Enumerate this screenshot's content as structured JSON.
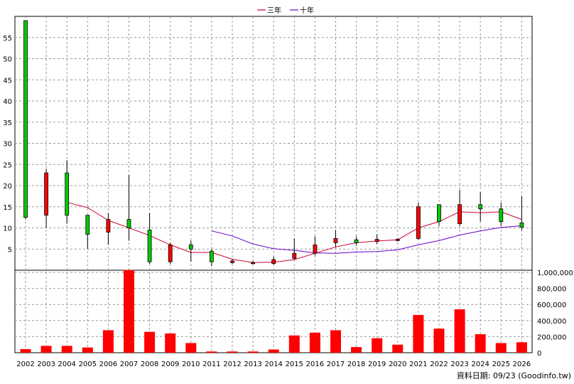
{
  "chart_data": {
    "type": "candlestick",
    "legend_position": "top-center",
    "source_note": "資料日期: 09/23 (Goodinfo.tw)",
    "categories": [
      "2002",
      "2003",
      "2004",
      "2005",
      "2006",
      "2007",
      "2008",
      "2009",
      "2010",
      "2011",
      "2012",
      "2013",
      "2014",
      "2015",
      "2016",
      "2017",
      "2018",
      "2019",
      "2020",
      "2021",
      "2022",
      "2023",
      "2024",
      "2025",
      "2026"
    ],
    "colors": {
      "up": "#00cc00",
      "down": "#ff0000",
      "ma3": "#cc0033",
      "ma10": "#6600cc",
      "grid": "#999999"
    },
    "price_panel": {
      "ylim": [
        0,
        60
      ],
      "yticks": [
        5,
        10,
        15,
        20,
        25,
        30,
        35,
        40,
        45,
        50,
        55
      ],
      "candles": [
        {
          "o": 12.5,
          "h": 59,
          "l": 12,
          "c": 59
        },
        {
          "o": 23,
          "h": 24,
          "l": 10,
          "c": 13
        },
        {
          "o": 13,
          "h": 26,
          "l": 11,
          "c": 23
        },
        {
          "o": 8.5,
          "h": 13,
          "l": 5,
          "c": 13
        },
        {
          "o": 12,
          "h": 13.5,
          "l": 6,
          "c": 9
        },
        {
          "o": 10,
          "h": 22.5,
          "l": 7,
          "c": 12
        },
        {
          "o": 2,
          "h": 13.5,
          "l": 1.5,
          "c": 9.5
        },
        {
          "o": 6,
          "h": 6.5,
          "l": 1.5,
          "c": 2
        },
        {
          "o": 5,
          "h": 7,
          "l": 2,
          "c": 6
        },
        {
          "o": 2,
          "h": 5,
          "l": 1,
          "c": 4.5
        },
        {
          "o": 2.2,
          "h": 2.6,
          "l": 1.5,
          "c": 1.8
        },
        {
          "o": 1.8,
          "h": 2.2,
          "l": 1.4,
          "c": 1.6
        },
        {
          "o": 2.5,
          "h": 3.2,
          "l": 1.3,
          "c": 1.6
        },
        {
          "o": 4,
          "h": 7.5,
          "l": 2.5,
          "c": 2.8
        },
        {
          "o": 6,
          "h": 8,
          "l": 3.5,
          "c": 4
        },
        {
          "o": 7.5,
          "h": 9.5,
          "l": 5.5,
          "c": 6.5
        },
        {
          "o": 6.5,
          "h": 8,
          "l": 5.8,
          "c": 7.2
        },
        {
          "o": 7.3,
          "h": 8.5,
          "l": 6.2,
          "c": 6.8
        },
        {
          "o": 7.3,
          "h": 7.6,
          "l": 6.8,
          "c": 7
        },
        {
          "o": 15,
          "h": 16,
          "l": 7.2,
          "c": 7.5
        },
        {
          "o": 11.5,
          "h": 15.5,
          "l": 10.5,
          "c": 15.5
        },
        {
          "o": 15.5,
          "h": 19,
          "l": 10.5,
          "c": 11
        },
        {
          "o": 14.5,
          "h": 18.5,
          "l": 11.5,
          "c": 15.5
        },
        {
          "o": 11.5,
          "h": 16,
          "l": 10.5,
          "c": 14.5
        },
        {
          "o": 10.2,
          "h": 17.5,
          "l": 9.5,
          "c": 11.2
        }
      ],
      "series": [
        {
          "name": "三年",
          "color": "#cc0033",
          "values": [
            null,
            null,
            16,
            14.8,
            11.8,
            10,
            8.2,
            6,
            4.2,
            4.2,
            2.6,
            1.8,
            1.9,
            2.5,
            4,
            5.5,
            6.5,
            6.9,
            7.2,
            10,
            11.5,
            13.8,
            13.6,
            13.8,
            12
          ]
        },
        {
          "name": "十年",
          "color": "#6600cc",
          "values": [
            null,
            null,
            null,
            null,
            null,
            null,
            null,
            null,
            null,
            9.3,
            8.1,
            6.2,
            5.1,
            4.7,
            4.1,
            4,
            4.3,
            4.4,
            4.8,
            6,
            7,
            8.3,
            9.3,
            10.1,
            10.5
          ]
        }
      ]
    },
    "volume_panel": {
      "ylim": [
        0,
        1000000
      ],
      "yticks": [
        0,
        200000,
        400000,
        600000,
        800000,
        1000000
      ],
      "ytick_labels": [
        "0",
        "200,000",
        "400,000",
        "600,000",
        "800,000",
        "1,000,000"
      ],
      "values": [
        45000,
        85000,
        85000,
        65000,
        280000,
        1030000,
        260000,
        240000,
        120000,
        15000,
        15000,
        15000,
        40000,
        215000,
        250000,
        280000,
        70000,
        180000,
        100000,
        470000,
        300000,
        540000,
        230000,
        120000,
        130000
      ],
      "color": "#ff0000"
    }
  }
}
